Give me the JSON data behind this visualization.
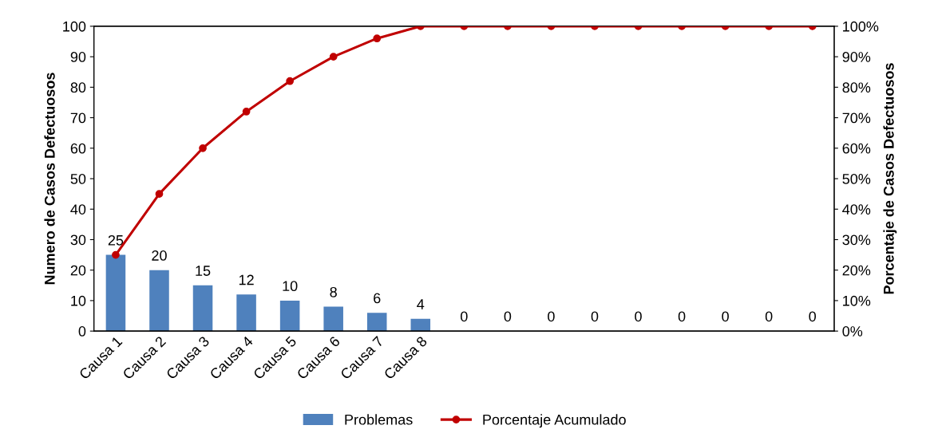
{
  "chart_data": {
    "type": "bar",
    "ylabel": "Numero de Casos Defectuosos",
    "y2label": "Porcentaje de Casos Defectuosos",
    "categories": [
      "Causa 1",
      "Causa 2",
      "Causa 3",
      "Causa 4",
      "Causa 5",
      "Causa 6",
      "Causa 7",
      "Causa 8",
      null,
      null,
      null,
      null,
      null,
      null,
      null,
      null,
      null
    ],
    "series": [
      {
        "name": "Problemas",
        "color": "#4f81bd",
        "values": [
          25,
          20,
          15,
          12,
          10,
          8,
          6,
          4,
          0,
          0,
          0,
          0,
          0,
          0,
          0,
          0,
          0
        ],
        "data_labels": true
      },
      {
        "name": "Porcentaje Acumulado",
        "type": "line",
        "axis": "y2",
        "color": "#c00000",
        "marker": "circle",
        "line_style": "solid",
        "values": [
          25,
          45,
          60,
          72,
          82,
          90,
          96,
          100,
          100,
          100,
          100,
          100,
          100,
          100,
          100,
          100,
          100
        ]
      }
    ],
    "ylim": [
      0,
      100
    ],
    "yticks": [
      0,
      10,
      20,
      30,
      40,
      50,
      60,
      70,
      80,
      90,
      100
    ],
    "y2lim": [
      0,
      100
    ],
    "y2ticks": [
      {
        "value": 0,
        "label": "0%"
      },
      {
        "value": 10,
        "label": "10%"
      },
      {
        "value": 20,
        "label": "20%"
      },
      {
        "value": 30,
        "label": "30%"
      },
      {
        "value": 40,
        "label": "40%"
      },
      {
        "value": 50,
        "label": "50%"
      },
      {
        "value": 60,
        "label": "60%"
      },
      {
        "value": 70,
        "label": "70%"
      },
      {
        "value": 80,
        "label": "80%"
      },
      {
        "value": 90,
        "label": "90%"
      },
      {
        "value": 100,
        "label": "100%"
      }
    ],
    "grid": false,
    "legend": "bottom"
  }
}
